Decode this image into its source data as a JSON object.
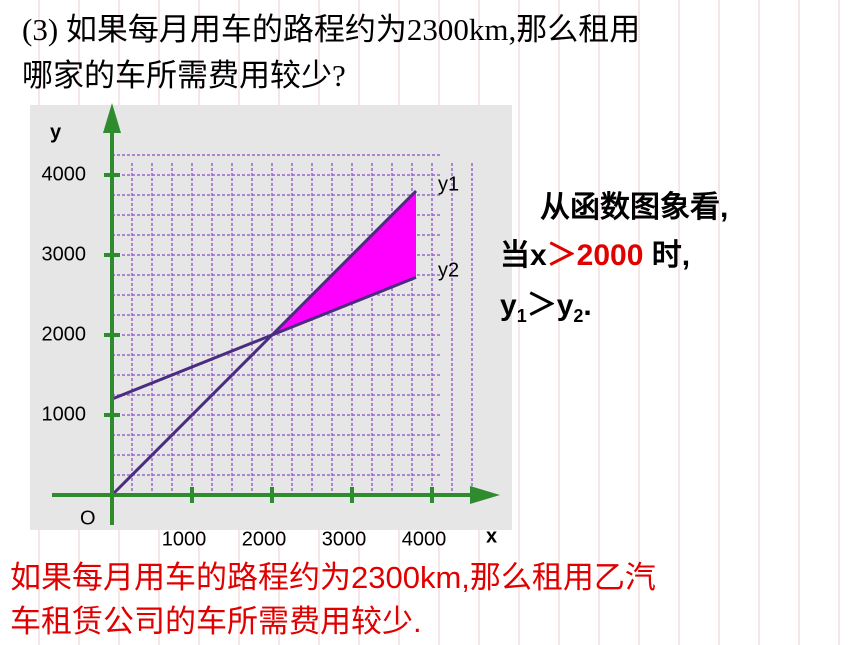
{
  "question": {
    "line1": "(3) 如果每月用车的路程约为2300km,那么租用",
    "line2": "哪家的车所需费用较少?"
  },
  "note": {
    "l1": "从函数图象看,",
    "l2a": "当x",
    "l2b": "＞2000",
    "l2c": " 时,",
    "l3a": "y",
    "l3b": "1",
    "l3c": "＞y",
    "l3d": "2",
    "l3e": "."
  },
  "conclusion": {
    "line1": "如果每月用车的路程约为2300km,那么租用乙汽",
    "line2": "车租赁公司的车所需费用较少."
  },
  "chart_data": {
    "type": "line",
    "x_label": "x",
    "y_label": "y",
    "origin_label": "O",
    "x": [
      0,
      2000,
      3800
    ],
    "series": [
      {
        "name": "y1",
        "color": "#4b2d7f",
        "values": [
          0,
          2000,
          3800
        ]
      },
      {
        "name": "y2",
        "color": "#4b2d7f",
        "values": [
          1200,
          2000,
          2720
        ]
      }
    ],
    "fill_color": "#ff00ff",
    "axis_color": "#2e8b2e",
    "grid_color": "#9966cc",
    "xlim": [
      0,
      4850
    ],
    "ylim": [
      0,
      4900
    ],
    "xticks": [
      1000,
      2000,
      3000,
      4000
    ],
    "yticks": [
      1000,
      2000,
      3000,
      4000
    ],
    "grid": true
  }
}
